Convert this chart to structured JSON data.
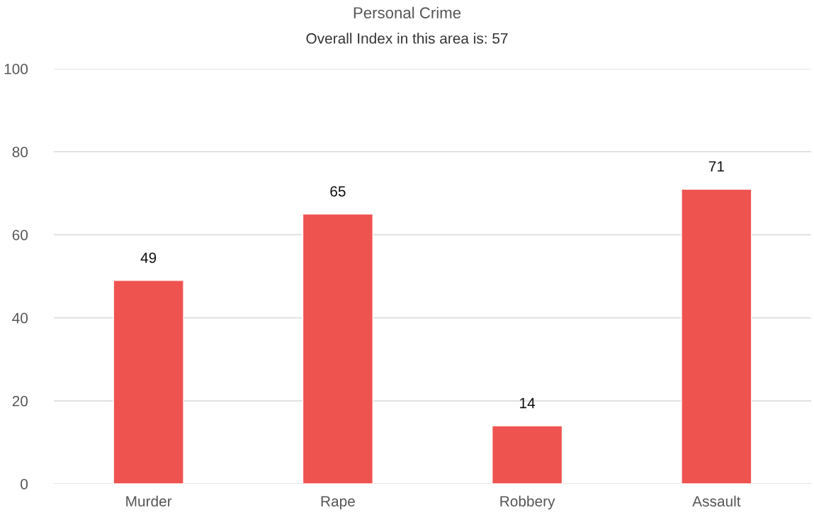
{
  "chart_data": {
    "type": "bar",
    "title": "Personal Crime",
    "subtitle": "Overall Index in this area is: 57",
    "categories": [
      "Murder",
      "Rape",
      "Robbery",
      "Assault"
    ],
    "values": [
      49,
      65,
      14,
      71
    ],
    "color": "#ef5350",
    "ylim": [
      0,
      100
    ],
    "yticks": [
      0,
      20,
      40,
      60,
      80,
      100
    ],
    "grid": "y",
    "data_labels": true,
    "legend": false
  }
}
